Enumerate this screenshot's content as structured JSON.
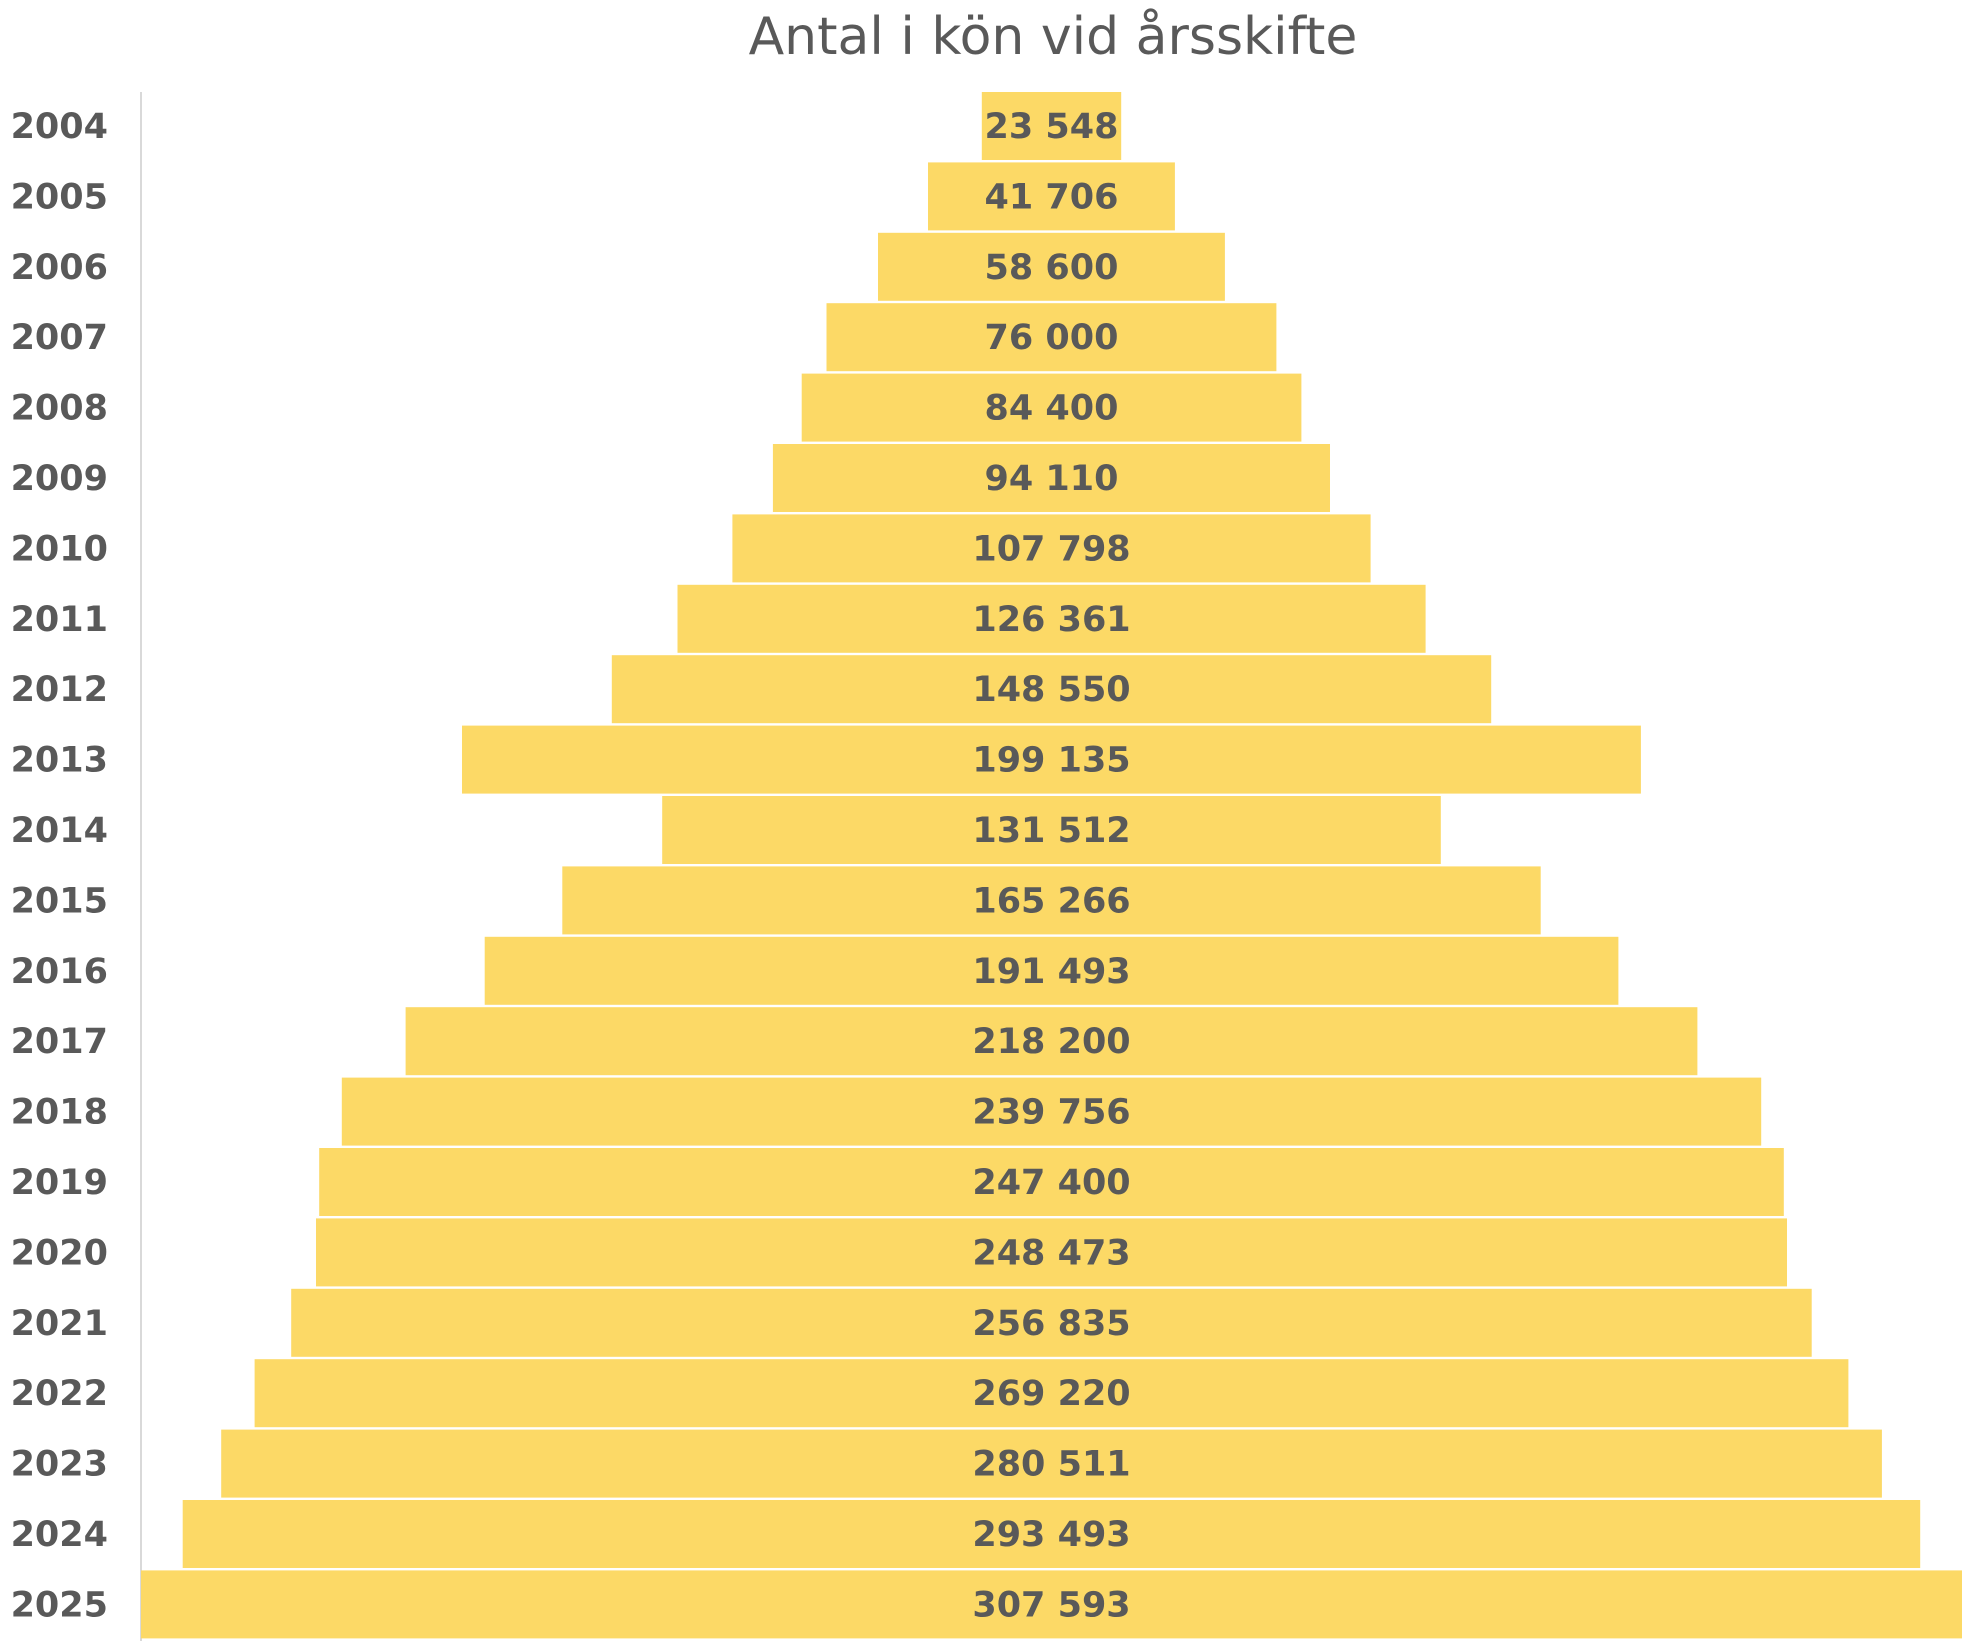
{
  "chart_data": {
    "type": "bar",
    "orientation": "horizontal",
    "layout": "centered-pyramid",
    "title": "Antal i kön vid årsskifte",
    "xlabel": "",
    "ylabel": "",
    "categories": [
      "2004",
      "2005",
      "2006",
      "2007",
      "2008",
      "2009",
      "2010",
      "2011",
      "2012",
      "2013",
      "2014",
      "2015",
      "2016",
      "2017",
      "2018",
      "2019",
      "2020",
      "2021",
      "2022",
      "2023",
      "2024",
      "2025"
    ],
    "values": [
      23548,
      41706,
      58600,
      76000,
      84400,
      94110,
      107798,
      126361,
      148550,
      199135,
      131512,
      165266,
      191493,
      218200,
      239756,
      247400,
      248473,
      256835,
      269220,
      280511,
      293493,
      307593
    ],
    "data_labels": [
      "23 548",
      "41 706",
      "58 600",
      "76 000",
      "84 400",
      "94 110",
      "107 798",
      "126 361",
      "148 550",
      "199 135",
      "131 512",
      "165 266",
      "191 493",
      "218 200",
      "239 756",
      "247 400",
      "248 473",
      "256 835",
      "269 220",
      "280 511",
      "293 493",
      "307 593"
    ],
    "xlim": [
      0,
      307593
    ],
    "bar_color": "#FCD966",
    "text_color": "#595959",
    "axis_color": "#D9D9D9",
    "grid": false,
    "legend": "none"
  }
}
